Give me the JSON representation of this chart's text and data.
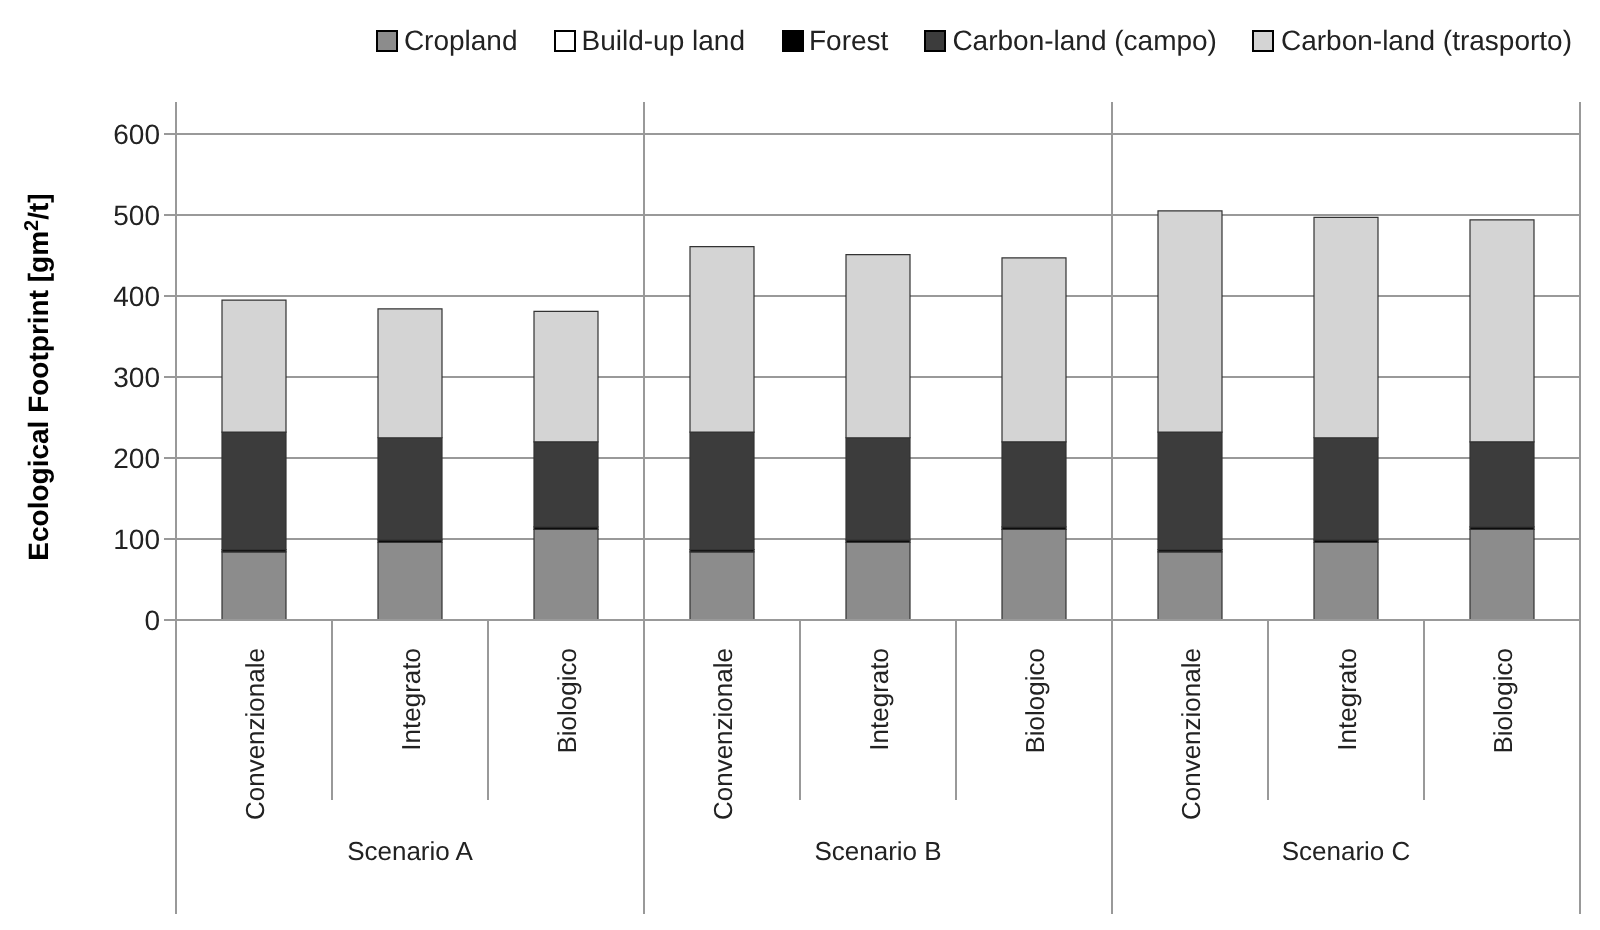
{
  "chart_data": {
    "type": "bar",
    "ylabel": "Ecological Footprint [gm$^{2}$/t]",
    "categories": [
      "Convenzionale",
      "Integrato",
      "Biologico",
      "Convenzionale",
      "Integrato",
      "Biologico",
      "Convenzionale",
      "Integrato",
      "Biologico"
    ],
    "annotations": [
      "Scenario A",
      "Scenario B",
      "Scenario C"
    ],
    "series": [
      {
        "name": "Cropland",
        "color": "#8c8c8c",
        "values": [
          84,
          96,
          112,
          84,
          96,
          112,
          84,
          96,
          112
        ]
      },
      {
        "name": "Build-up land",
        "color": "#ffffff",
        "values": [
          0,
          0,
          0,
          0,
          0,
          0,
          0,
          0,
          0
        ]
      },
      {
        "name": "Forest",
        "color": "#000000",
        "values": [
          3,
          3,
          3,
          3,
          3,
          3,
          3,
          3,
          3
        ]
      },
      {
        "name": "Carbon-land (campo)",
        "color": "#3c3c3c",
        "values": [
          145,
          126,
          105,
          145,
          126,
          105,
          145,
          126,
          105
        ]
      },
      {
        "name": "Carbon-land (trasporto)",
        "color": "#d4d4d4",
        "values": [
          163,
          159,
          161,
          229,
          226,
          227,
          273,
          272,
          274
        ]
      }
    ],
    "stacked": true,
    "ylim": [
      0,
      600
    ],
    "yticks": [
      0,
      100,
      200,
      300,
      400,
      500,
      600
    ],
    "grid": "y",
    "legend": "top right"
  }
}
